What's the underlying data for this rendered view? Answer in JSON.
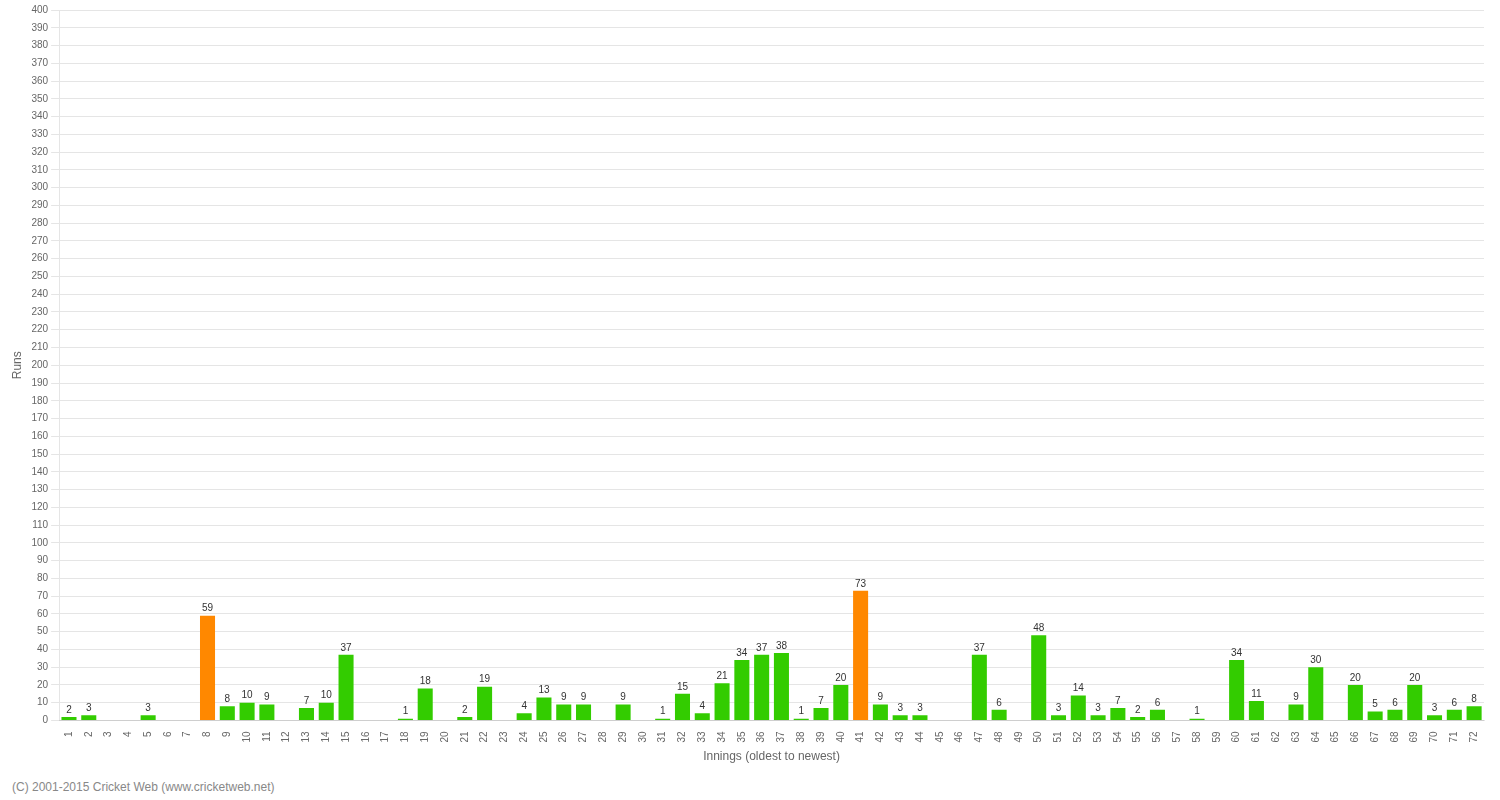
{
  "chart_data": {
    "type": "bar",
    "categories": [
      "1",
      "2",
      "3",
      "4",
      "5",
      "6",
      "7",
      "8",
      "9",
      "10",
      "11",
      "12",
      "13",
      "14",
      "15",
      "16",
      "17",
      "18",
      "19",
      "20",
      "21",
      "22",
      "23",
      "24",
      "25",
      "26",
      "27",
      "28",
      "29",
      "30",
      "31",
      "32",
      "33",
      "34",
      "35",
      "36",
      "37",
      "38",
      "39",
      "40",
      "41",
      "42",
      "43",
      "44",
      "45",
      "46",
      "47",
      "48",
      "49",
      "50",
      "51",
      "52",
      "53",
      "54",
      "55",
      "56",
      "57",
      "58",
      "59",
      "60",
      "61",
      "62",
      "63",
      "64",
      "65",
      "66",
      "67",
      "68",
      "69",
      "70",
      "71",
      "72"
    ],
    "values": [
      2,
      3,
      0,
      0,
      3,
      0,
      0,
      59,
      8,
      10,
      9,
      0,
      7,
      10,
      37,
      0,
      0,
      1,
      18,
      0,
      2,
      19,
      0,
      4,
      13,
      9,
      9,
      0,
      9,
      0,
      1,
      15,
      4,
      21,
      34,
      37,
      38,
      1,
      7,
      20,
      73,
      9,
      3,
      3,
      0,
      0,
      37,
      6,
      0,
      48,
      3,
      14,
      3,
      7,
      2,
      6,
      0,
      1,
      0,
      34,
      11,
      0,
      9,
      30,
      0,
      20,
      5,
      6,
      20,
      3,
      6,
      8
    ],
    "value_labels": [
      "2",
      "3",
      null,
      null,
      "3",
      null,
      null,
      "59",
      "8",
      "10",
      "9",
      null,
      "7",
      "10",
      "37",
      null,
      null,
      "1",
      "18",
      null,
      "2",
      "19",
      null,
      "4",
      "13",
      "9",
      "9",
      null,
      "9",
      null,
      "1",
      "15",
      "4",
      "21",
      "34",
      "37",
      "38",
      "1",
      "7",
      "20",
      "73",
      "9",
      "3",
      "3",
      null,
      null,
      "37",
      "6",
      null,
      "48",
      "3",
      "14",
      "3",
      "7",
      "2",
      "6",
      null,
      "1",
      null,
      "34",
      "11",
      null,
      "9",
      "30",
      null,
      "20",
      "5",
      "6",
      "20",
      "3",
      "6",
      "8"
    ],
    "data_labels": true,
    "colors": [
      "#33cc00",
      "#33cc00",
      "#33cc00",
      "#33cc00",
      "#33cc00",
      "#33cc00",
      "#33cc00",
      "#ff8800",
      "#33cc00",
      "#33cc00",
      "#33cc00",
      "#33cc00",
      "#33cc00",
      "#33cc00",
      "#33cc00",
      "#33cc00",
      "#33cc00",
      "#33cc00",
      "#33cc00",
      "#33cc00",
      "#33cc00",
      "#33cc00",
      "#33cc00",
      "#33cc00",
      "#33cc00",
      "#33cc00",
      "#33cc00",
      "#33cc00",
      "#33cc00",
      "#33cc00",
      "#33cc00",
      "#33cc00",
      "#33cc00",
      "#33cc00",
      "#33cc00",
      "#33cc00",
      "#33cc00",
      "#33cc00",
      "#33cc00",
      "#33cc00",
      "#ff8800",
      "#33cc00",
      "#33cc00",
      "#33cc00",
      "#33cc00",
      "#33cc00",
      "#33cc00",
      "#33cc00",
      "#33cc00",
      "#33cc00",
      "#33cc00",
      "#33cc00",
      "#33cc00",
      "#33cc00",
      "#33cc00",
      "#33cc00",
      "#33cc00",
      "#33cc00",
      "#33cc00",
      "#33cc00",
      "#33cc00",
      "#33cc00",
      "#33cc00",
      "#33cc00",
      "#33cc00",
      "#33cc00",
      "#33cc00",
      "#33cc00",
      "#33cc00",
      "#33cc00",
      "#33cc00",
      "#33cc00"
    ],
    "xlabel": "Innings (oldest to newest)",
    "ylabel": "Runs",
    "ylim": [
      0,
      400
    ],
    "yticks": [
      0,
      10,
      20,
      30,
      40,
      50,
      60,
      70,
      80,
      90,
      100,
      110,
      120,
      130,
      140,
      150,
      160,
      170,
      180,
      190,
      200,
      210,
      220,
      230,
      240,
      250,
      260,
      270,
      280,
      290,
      300,
      310,
      320,
      330,
      340,
      350,
      360,
      370,
      380,
      390,
      400
    ],
    "grid": true,
    "annotations": [
      "(C) 2001-2015 Cricket Web (www.cricketweb.net)"
    ]
  }
}
